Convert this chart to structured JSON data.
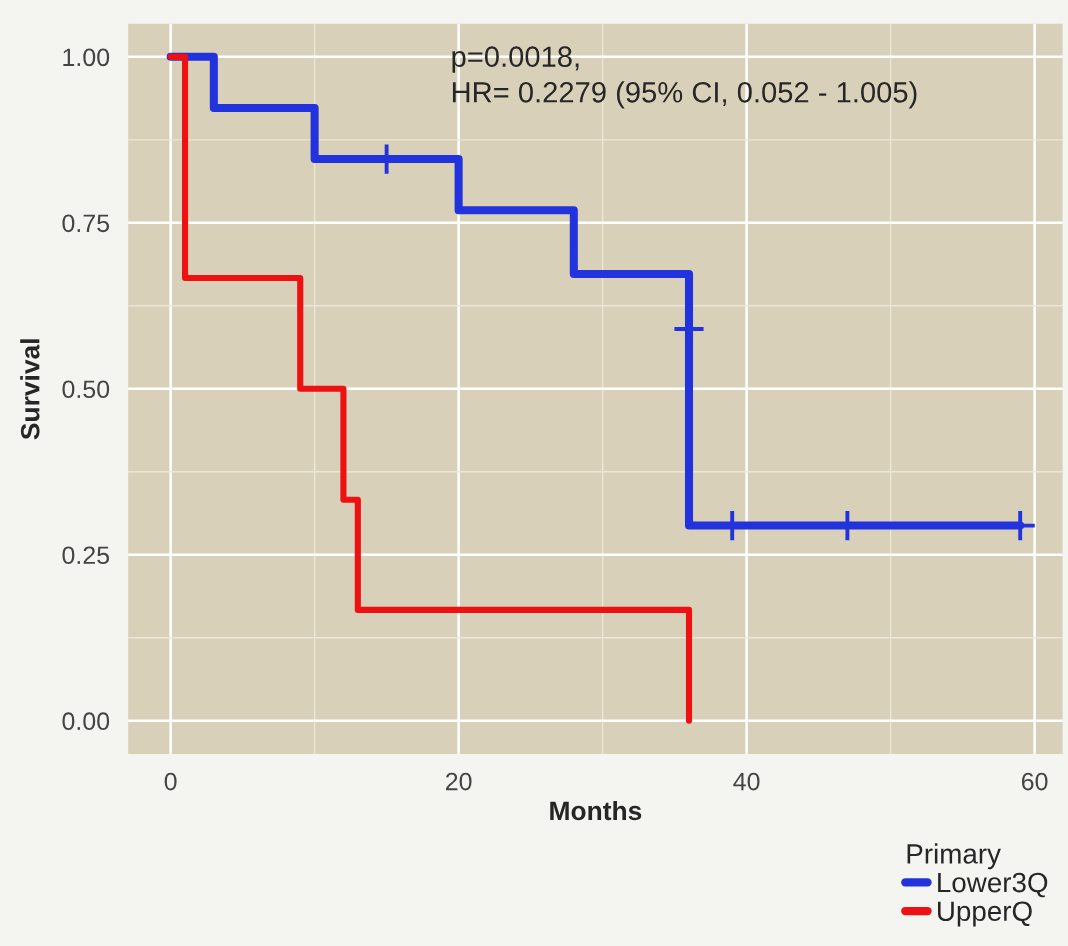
{
  "chart_data": {
    "type": "step",
    "xlabel": "Months",
    "ylabel": "Survival",
    "legend_title": "Primary",
    "annotations": [
      "p=0.0018,\nHR= 0.2279 (95% CI, 0.052 - 1.005)"
    ],
    "series": [
      {
        "name": "Lower3Q",
        "color": "#2233dd",
        "x": [
          0,
          3,
          10,
          20,
          28,
          36,
          59
        ],
        "values": [
          1,
          0.923,
          0.846,
          0.769,
          0.673,
          0.294,
          0.294
        ]
      },
      {
        "name": "UpperQ",
        "color": "#ee1111",
        "x": [
          0,
          1,
          9,
          12,
          13,
          36
        ],
        "values": [
          1,
          0.667,
          0.5,
          0.333,
          0.167,
          0
        ]
      },
      {
        "type": "scatter",
        "marker": "cross",
        "color": "#2233dd",
        "x": [
          15,
          36,
          39,
          47,
          59
        ],
        "values": [
          0.846,
          0.59,
          0.294,
          0.294,
          0.294
        ]
      }
    ],
    "xlim": [
      -2.95,
      61.95
    ],
    "ylim": [
      -0.05,
      1.05
    ],
    "xticks": [
      0,
      20,
      40,
      60
    ],
    "yticks": [
      {
        "value": 0,
        "label": "0.00"
      },
      {
        "value": 0.25,
        "label": "0.25"
      },
      {
        "value": 0.5,
        "label": "0.50"
      },
      {
        "value": 0.75,
        "label": "0.75"
      },
      {
        "value": 1,
        "label": "1.00"
      }
    ],
    "grid": true,
    "legend": "bottom right"
  }
}
